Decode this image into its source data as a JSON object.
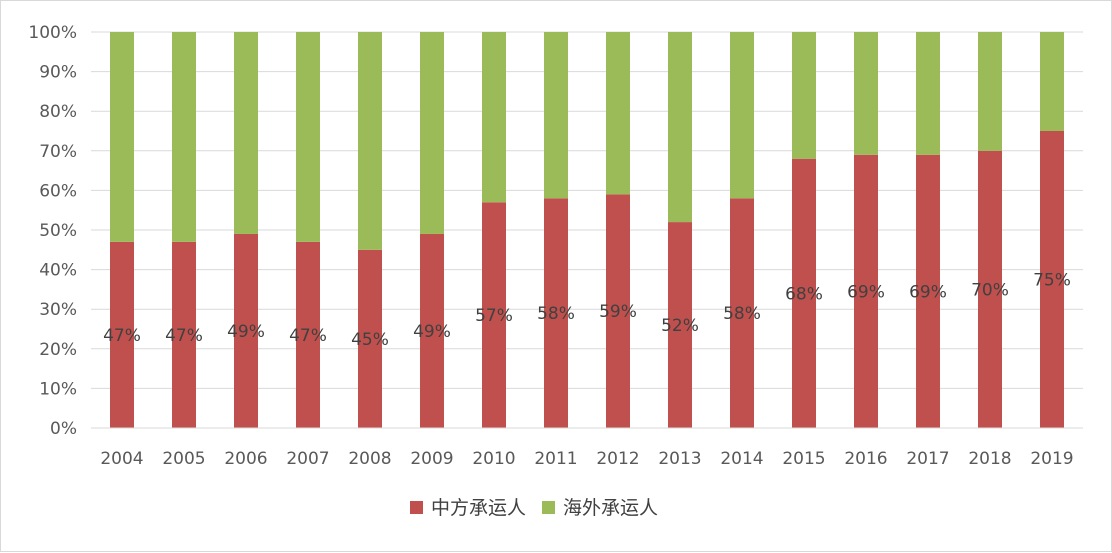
{
  "chart_data": {
    "type": "bar",
    "stacked": true,
    "percent": true,
    "categories": [
      "2004",
      "2005",
      "2006",
      "2007",
      "2008",
      "2009",
      "2010",
      "2011",
      "2012",
      "2013",
      "2014",
      "2015",
      "2016",
      "2017",
      "2018",
      "2019"
    ],
    "series": [
      {
        "name": "中方承运人",
        "color": "#c0504d",
        "values": [
          47,
          47,
          49,
          47,
          45,
          49,
          57,
          58,
          59,
          52,
          58,
          68,
          69,
          69,
          70,
          75
        ]
      },
      {
        "name": "海外承运人",
        "color": "#9bbb59",
        "values": [
          53,
          53,
          51,
          53,
          55,
          51,
          43,
          42,
          41,
          48,
          42,
          32,
          31,
          31,
          30,
          25
        ]
      }
    ],
    "data_labels": [
      "47%",
      "47%",
      "49%",
      "47%",
      "45%",
      "49%",
      "57%",
      "58%",
      "59%",
      "52%",
      "58%",
      "68%",
      "69%",
      "69%",
      "70%",
      "75%"
    ],
    "y_ticks": [
      "0%",
      "10%",
      "20%",
      "30%",
      "40%",
      "50%",
      "60%",
      "70%",
      "80%",
      "90%",
      "100%"
    ],
    "ylim": [
      0,
      100
    ],
    "grid": true,
    "legend_position": "bottom"
  }
}
